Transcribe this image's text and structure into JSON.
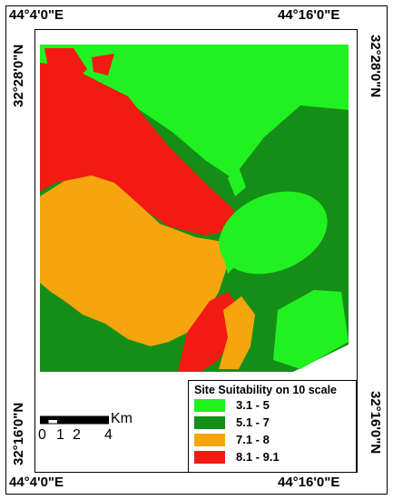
{
  "coords": {
    "top_left": "44°4'0\"E",
    "top_right": "44°16'0\"E",
    "bottom_left": "44°4'0\"E",
    "bottom_right": "44°16'0\"E",
    "left_top": "32°28'0\"N",
    "right_top": "32°28'0\"N",
    "left_bottom": "32°16'0\"N",
    "right_bottom": "32°16'0\"N"
  },
  "legend": {
    "title": "Site Suitability on 10 scale",
    "items": [
      {
        "label": "3.1 - 5",
        "color": "#21f121"
      },
      {
        "label": "5.1 - 7",
        "color": "#158e17"
      },
      {
        "label": "7.1 - 8",
        "color": "#f5a60f"
      },
      {
        "label": "8.1 - 9.1",
        "color": "#f21a12"
      }
    ]
  },
  "scale": {
    "unit": "Km",
    "ticks": [
      "0",
      "1",
      "2",
      "4"
    ]
  }
}
